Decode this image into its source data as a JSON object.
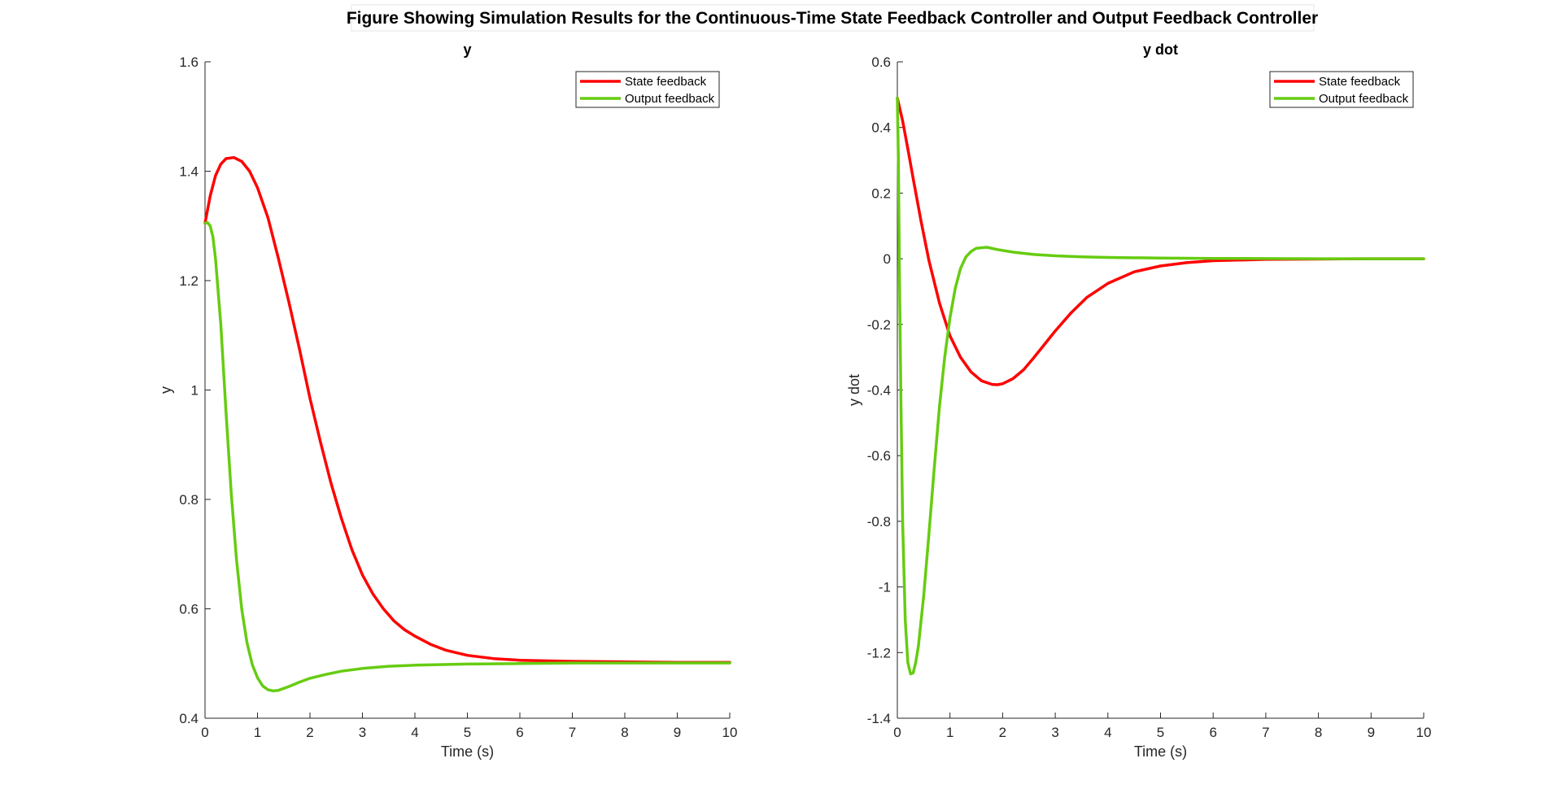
{
  "figure": {
    "title": "Figure Showing Simulation Results for the Continuous-Time State Feedback Controller and Output Feedback Controller"
  },
  "colors": {
    "state_feedback": "#ff0000",
    "output_feedback": "#66cc11",
    "axes": "#262626"
  },
  "chart_data": [
    {
      "type": "line",
      "title": "y",
      "xlabel": "Time (s)",
      "ylabel": "y",
      "xlim": [
        0,
        10
      ],
      "ylim": [
        0.4,
        1.6
      ],
      "xticks": [
        "0",
        "1",
        "2",
        "3",
        "4",
        "5",
        "6",
        "7",
        "8",
        "9",
        "10"
      ],
      "yticks": [
        "0.4",
        "0.6",
        "0.8",
        "1",
        "1.2",
        "1.4",
        "1.6"
      ],
      "grid": false,
      "legend_position": "top-right",
      "series": [
        {
          "name": "State feedback",
          "color": "#ff0000",
          "x": [
            0,
            0.1,
            0.2,
            0.3,
            0.4,
            0.55,
            0.7,
            0.85,
            1.0,
            1.2,
            1.4,
            1.6,
            1.8,
            2.0,
            2.2,
            2.4,
            2.6,
            2.8,
            3.0,
            3.2,
            3.4,
            3.6,
            3.8,
            4.0,
            4.3,
            4.6,
            5.0,
            5.5,
            6.0,
            7.0,
            8.0,
            9.0,
            10.0
          ],
          "y": [
            1.305,
            1.355,
            1.392,
            1.413,
            1.423,
            1.425,
            1.418,
            1.4,
            1.37,
            1.315,
            1.24,
            1.16,
            1.075,
            0.985,
            0.905,
            0.83,
            0.765,
            0.708,
            0.662,
            0.627,
            0.6,
            0.578,
            0.562,
            0.55,
            0.535,
            0.524,
            0.515,
            0.509,
            0.506,
            0.504,
            0.503,
            0.502,
            0.502
          ]
        },
        {
          "name": "Output feedback",
          "color": "#66cc11",
          "x": [
            0,
            0.05,
            0.1,
            0.15,
            0.2,
            0.3,
            0.4,
            0.5,
            0.6,
            0.7,
            0.8,
            0.9,
            1.0,
            1.1,
            1.2,
            1.3,
            1.4,
            1.6,
            1.8,
            2.0,
            2.3,
            2.6,
            3.0,
            3.5,
            4.0,
            5.0,
            6.0,
            7.0,
            8.0,
            10.0
          ],
          "y": [
            1.305,
            1.306,
            1.3,
            1.28,
            1.24,
            1.12,
            0.96,
            0.81,
            0.69,
            0.6,
            0.538,
            0.498,
            0.474,
            0.459,
            0.452,
            0.45,
            0.451,
            0.458,
            0.466,
            0.473,
            0.48,
            0.486,
            0.491,
            0.495,
            0.497,
            0.499,
            0.5,
            0.501,
            0.501,
            0.501
          ]
        }
      ]
    },
    {
      "type": "line",
      "title": "y dot",
      "xlabel": "Time (s)",
      "ylabel": "y dot",
      "xlim": [
        0,
        10
      ],
      "ylim": [
        -1.4,
        0.6
      ],
      "xticks": [
        "0",
        "1",
        "2",
        "3",
        "4",
        "5",
        "6",
        "7",
        "8",
        "9",
        "10"
      ],
      "yticks": [
        "-1.4",
        "-1.2",
        "-1",
        "-0.8",
        "-0.6",
        "-0.4",
        "-0.2",
        "0",
        "0.2",
        "0.4",
        "0.6"
      ],
      "grid": false,
      "legend_position": "top-right",
      "series": [
        {
          "name": "State feedback",
          "color": "#ff0000",
          "x": [
            0,
            0.1,
            0.2,
            0.3,
            0.45,
            0.6,
            0.8,
            1.0,
            1.2,
            1.4,
            1.6,
            1.8,
            1.9,
            2.0,
            2.2,
            2.4,
            2.6,
            2.8,
            3.0,
            3.3,
            3.6,
            4.0,
            4.5,
            5.0,
            5.5,
            6.0,
            7.0,
            8.0,
            9.0,
            10.0
          ],
          "y": [
            0.49,
            0.42,
            0.335,
            0.245,
            0.115,
            -0.005,
            -0.135,
            -0.235,
            -0.3,
            -0.345,
            -0.372,
            -0.383,
            -0.384,
            -0.381,
            -0.365,
            -0.338,
            -0.3,
            -0.26,
            -0.22,
            -0.165,
            -0.118,
            -0.075,
            -0.04,
            -0.022,
            -0.012,
            -0.006,
            -0.002,
            -0.001,
            0.0,
            0.0
          ]
        },
        {
          "name": "Output feedback",
          "color": "#66cc11",
          "x": [
            0,
            0.02,
            0.04,
            0.07,
            0.1,
            0.15,
            0.2,
            0.25,
            0.3,
            0.35,
            0.4,
            0.5,
            0.6,
            0.7,
            0.8,
            0.9,
            1.0,
            1.1,
            1.2,
            1.3,
            1.4,
            1.5,
            1.7,
            1.9,
            2.2,
            2.6,
            3.0,
            3.5,
            4.0,
            5.0,
            6.0,
            8.0,
            10.0
          ],
          "y": [
            0.49,
            0.3,
            -0.05,
            -0.45,
            -0.8,
            -1.1,
            -1.23,
            -1.265,
            -1.262,
            -1.23,
            -1.18,
            -1.03,
            -0.84,
            -0.64,
            -0.45,
            -0.3,
            -0.18,
            -0.09,
            -0.03,
            0.005,
            0.022,
            0.032,
            0.035,
            0.028,
            0.02,
            0.013,
            0.009,
            0.006,
            0.004,
            0.002,
            0.001,
            0.0,
            0.0
          ]
        }
      ]
    }
  ]
}
